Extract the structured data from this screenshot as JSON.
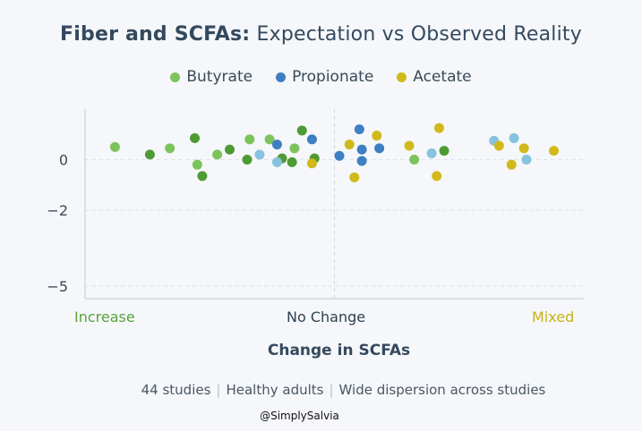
{
  "title_bold": "Fiber and SCFAs:",
  "title_rest": "Expectation vs Observed Reality",
  "legend": [
    {
      "label": "Butyrate",
      "color": "#7dc35b"
    },
    {
      "label": "Propionate",
      "color": "#3d7fc2"
    },
    {
      "label": "Acetate",
      "color": "#d2b91b"
    }
  ],
  "categories": {
    "increase": "Increase",
    "no_change": "No Change",
    "mixed": "Mixed"
  },
  "category_colors": {
    "increase": "#58a23a",
    "no_change": "#2f4150",
    "mixed": "#c9b016"
  },
  "xlabel": "Change in SCFAs",
  "footer": [
    "44 studies",
    "Healthy adults",
    "Wide dispersion across studies"
  ],
  "watermark": "@SimplySalvia",
  "chart_data": {
    "type": "scatter",
    "title": "Fiber and SCFAs: Expectation vs Observed Reality",
    "xlabel": "Change in SCFAs",
    "ylabel": "",
    "x_categories": [
      "Increase",
      "No Change",
      "Mixed"
    ],
    "xlim": [
      0,
      100
    ],
    "ylim": [
      -5.5,
      2
    ],
    "yticks": [
      0,
      -2,
      -5
    ],
    "grid": "dashed horizontal and center vertical",
    "series": [
      {
        "name": "Butyrate",
        "color": "#7dc35b",
        "points": [
          {
            "x": 6,
            "y": 0.5
          },
          {
            "x": 17,
            "y": 0.45
          },
          {
            "x": 22.5,
            "y": -0.2
          },
          {
            "x": 26.5,
            "y": 0.2
          },
          {
            "x": 33,
            "y": 0.8
          },
          {
            "x": 37,
            "y": 0.8
          },
          {
            "x": 42,
            "y": 0.45
          },
          {
            "x": 66,
            "y": 0
          }
        ]
      },
      {
        "name": "Butyrate (dark)",
        "color": "#4e9a34",
        "points": [
          {
            "x": 13,
            "y": 0.2
          },
          {
            "x": 22,
            "y": 0.85
          },
          {
            "x": 23.5,
            "y": -0.65
          },
          {
            "x": 29,
            "y": 0.4
          },
          {
            "x": 32.5,
            "y": 0
          },
          {
            "x": 39.5,
            "y": 0.05
          },
          {
            "x": 41.5,
            "y": -0.1
          },
          {
            "x": 43.5,
            "y": 1.15
          },
          {
            "x": 46,
            "y": 0.05
          },
          {
            "x": 72,
            "y": 0.35
          }
        ]
      },
      {
        "name": "Propionate",
        "color": "#3d7fc2",
        "points": [
          {
            "x": 38.5,
            "y": 0.6
          },
          {
            "x": 45.5,
            "y": 0.8
          },
          {
            "x": 51,
            "y": 0.15
          },
          {
            "x": 55,
            "y": 1.2
          },
          {
            "x": 55.5,
            "y": 0.4
          },
          {
            "x": 55.5,
            "y": -0.05
          },
          {
            "x": 59,
            "y": 0.45
          }
        ]
      },
      {
        "name": "Propionate (light)",
        "color": "#86c3de",
        "points": [
          {
            "x": 35,
            "y": 0.2
          },
          {
            "x": 38.5,
            "y": -0.1
          },
          {
            "x": 69.5,
            "y": 0.25
          },
          {
            "x": 82,
            "y": 0.75
          },
          {
            "x": 86,
            "y": 0.85
          },
          {
            "x": 88.5,
            "y": 0
          }
        ]
      },
      {
        "name": "Acetate",
        "color": "#d2b91b",
        "points": [
          {
            "x": 45.5,
            "y": -0.15
          },
          {
            "x": 53,
            "y": 0.6
          },
          {
            "x": 54,
            "y": -0.7
          },
          {
            "x": 58.5,
            "y": 0.95
          },
          {
            "x": 65,
            "y": 0.55
          },
          {
            "x": 70.5,
            "y": -0.65
          },
          {
            "x": 71,
            "y": 1.25
          },
          {
            "x": 83,
            "y": 0.55
          },
          {
            "x": 85.5,
            "y": -0.2
          },
          {
            "x": 88,
            "y": 0.45
          },
          {
            "x": 94,
            "y": 0.35
          }
        ]
      }
    ]
  }
}
